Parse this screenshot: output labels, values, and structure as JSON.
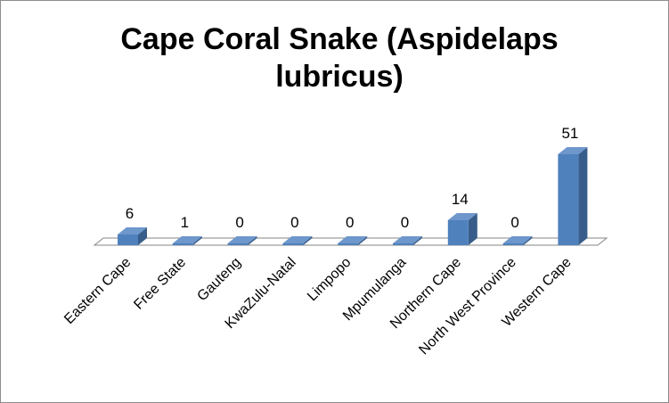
{
  "chart_data": {
    "type": "bar",
    "title": "Cape Coral Snake (Aspidelaps lubricus)",
    "categories": [
      "Eastern Cape",
      "Free State",
      "Gauteng",
      "KwaZulu-Natal",
      "Limpopo",
      "Mpumulanga",
      "Northern Cape",
      "North West Province",
      "Western Cape"
    ],
    "values": [
      6,
      1,
      0,
      0,
      0,
      0,
      14,
      0,
      51
    ],
    "xlabel": "",
    "ylabel": "",
    "ylim": [
      0,
      51
    ],
    "grid": false,
    "legend": "none",
    "bar_color": "#4F81BD",
    "bar_side_color": "#385D8A",
    "bar_top_color": "#6E97CC"
  }
}
